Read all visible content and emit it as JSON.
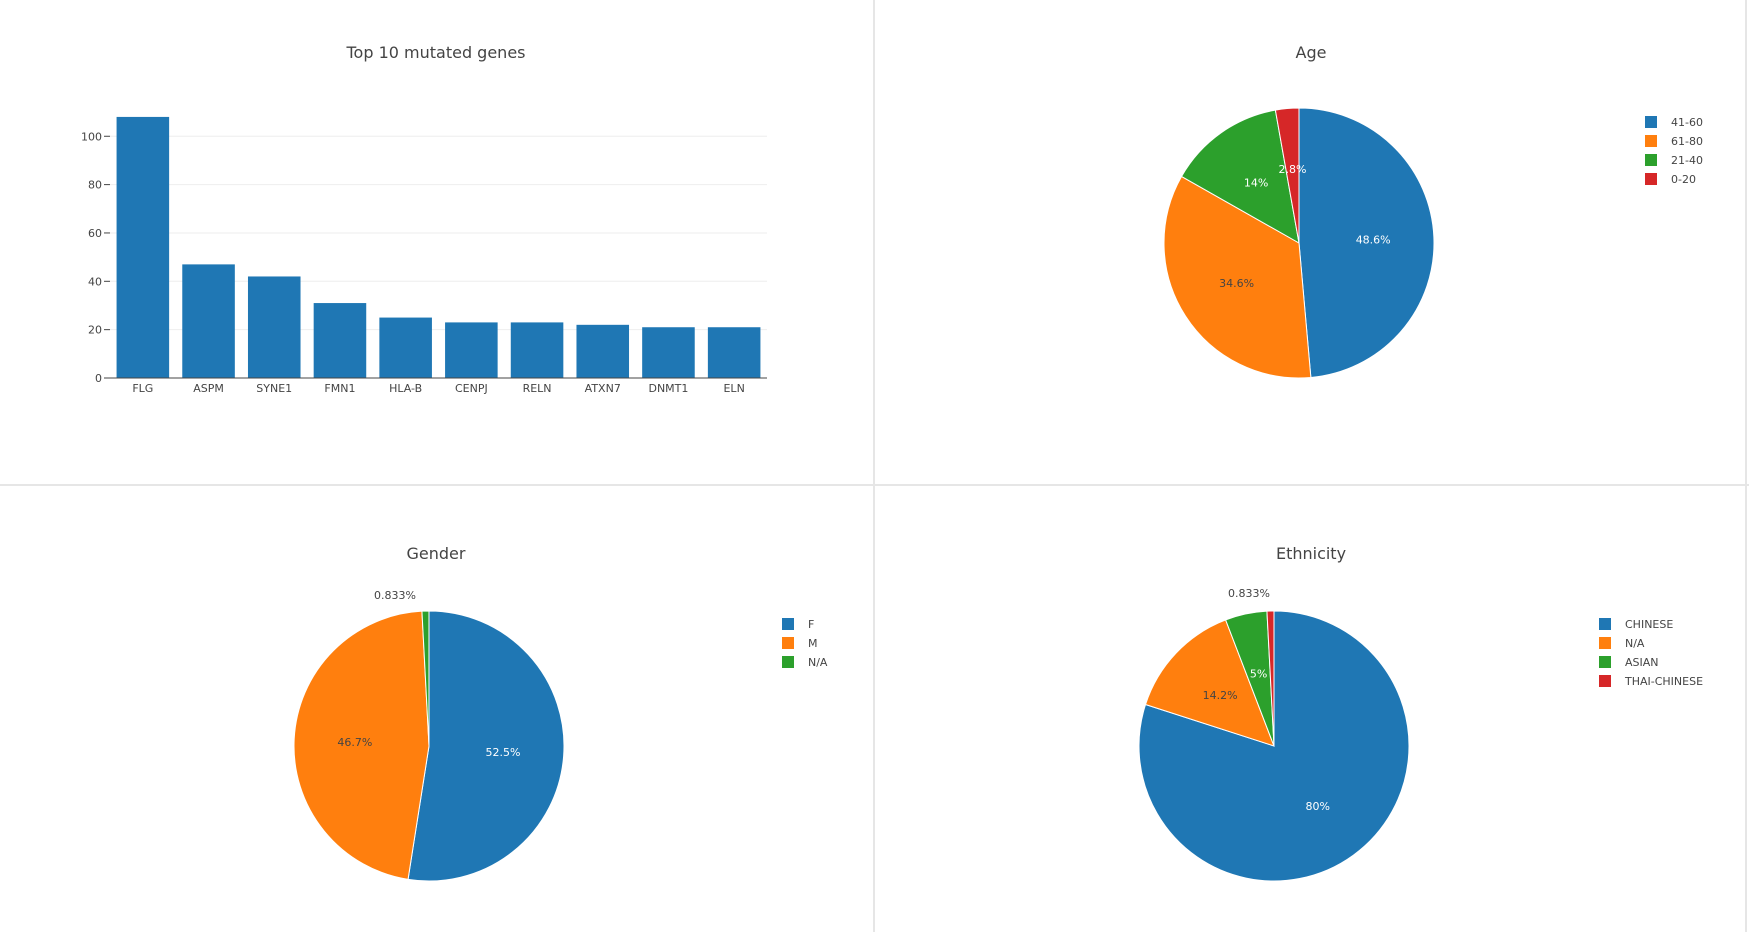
{
  "chart_data": [
    {
      "type": "bar",
      "title": "Top 10 mutated genes",
      "categories": [
        "FLG",
        "ASPM",
        "SYNE1",
        "FMN1",
        "HLA-B",
        "CENPJ",
        "RELN",
        "ATXN7",
        "DNMT1",
        "ELN"
      ],
      "values": [
        108,
        47,
        42,
        31,
        25,
        23,
        23,
        22,
        21,
        21
      ],
      "ylim": [
        0,
        115
      ],
      "yticks": [
        0,
        20,
        40,
        60,
        80,
        100
      ],
      "grid": true,
      "color": "#1f77b4"
    },
    {
      "type": "pie",
      "title": "Age",
      "legend_position": "top-right",
      "slices": [
        {
          "label": "41-60",
          "value": 48.6,
          "text": "48.6%",
          "color": "#1f77b4"
        },
        {
          "label": "61-80",
          "value": 34.6,
          "text": "34.6%",
          "color": "#ff7f0e"
        },
        {
          "label": "21-40",
          "value": 14.0,
          "text": "14%",
          "color": "#2ca02c"
        },
        {
          "label": "0-20",
          "value": 2.8,
          "text": "2.8%",
          "color": "#d62728"
        }
      ]
    },
    {
      "type": "pie",
      "title": "Gender",
      "legend_position": "top-right",
      "slices": [
        {
          "label": "F",
          "value": 52.5,
          "text": "52.5%",
          "color": "#1f77b4"
        },
        {
          "label": "M",
          "value": 46.7,
          "text": "46.7%",
          "color": "#ff7f0e"
        },
        {
          "label": "N/A",
          "value": 0.833,
          "text": "0.833%",
          "color": "#2ca02c"
        }
      ]
    },
    {
      "type": "pie",
      "title": "Ethnicity",
      "legend_position": "top-right",
      "slices": [
        {
          "label": "CHINESE",
          "value": 80,
          "text": "80%",
          "color": "#1f77b4"
        },
        {
          "label": "N/A",
          "value": 14.2,
          "text": "14.2%",
          "color": "#ff7f0e"
        },
        {
          "label": "ASIAN",
          "value": 5,
          "text": "5%",
          "color": "#2ca02c"
        },
        {
          "label": "THAI-CHINESE",
          "value": 0.833,
          "text": "0.833%",
          "color": "#d62728"
        }
      ]
    }
  ]
}
